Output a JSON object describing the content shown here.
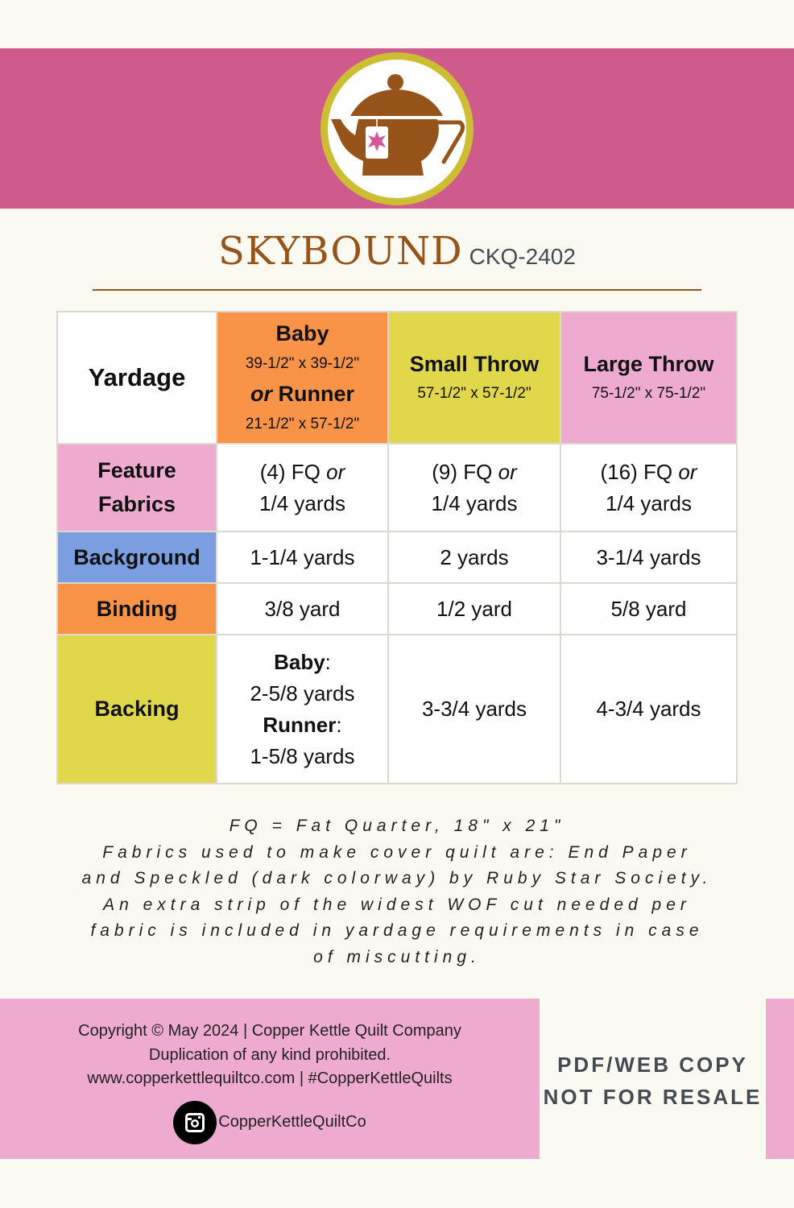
{
  "header": {
    "title": "SKYBOUND",
    "code": "CKQ-2402",
    "logo_icon": "teapot-with-quilt-star-teabag",
    "colors": {
      "banner": "#cf5a8c",
      "ring": "#cdbd33",
      "brown": "#97541a",
      "star": "#d8559a"
    }
  },
  "table": {
    "corner": "Yardage",
    "columns": [
      {
        "name": "Baby",
        "size": "39-1/2\" x 39-1/2\"",
        "alt_or": "or",
        "alt_name": "Runner",
        "alt_size": "21-1/2\" x 57-1/2\"",
        "color": "#f99347"
      },
      {
        "name": "Small Throw",
        "size": "57-1/2\" x 57-1/2\"",
        "color": "#e0d84a"
      },
      {
        "name": "Large Throw",
        "size": "75-1/2\" x 75-1/2\"",
        "color": "#efaad0"
      }
    ],
    "rows": [
      {
        "label1": "Feature",
        "label2": "Fabrics",
        "color": "#efaad0",
        "cells": [
          {
            "a": "(4) FQ ",
            "or": "or",
            "b": "1/4 yards"
          },
          {
            "a": "(9) FQ ",
            "or": "or",
            "b": "1/4 yards"
          },
          {
            "a": "(16) FQ ",
            "or": "or",
            "b": "1/4 yards"
          }
        ]
      },
      {
        "label": "Background",
        "color": "#7b9ee0",
        "cells": [
          "1-1/4 yards",
          "2 yards",
          "3-1/4 yards"
        ]
      },
      {
        "label": "Binding",
        "color": "#f99347",
        "cells": [
          "3/8 yard",
          "1/2 yard",
          "5/8 yard"
        ]
      },
      {
        "label": "Backing",
        "color": "#e0d84a",
        "baby": {
          "l1": "Baby",
          "v1": "2-5/8 yards",
          "l2": "Runner",
          "v2": "1-5/8 yards",
          "colon": ":"
        },
        "cells": [
          "3-3/4 yards",
          "4-3/4 yards"
        ]
      }
    ]
  },
  "notes": [
    "FQ = Fat Quarter, 18\" x 21\"",
    "Fabrics used to make cover quilt are: End Paper",
    "and Speckled (dark colorway) by Ruby Star Society.",
    "An extra strip of the widest WOF cut needed per",
    "fabric is included in yardage requirements in case",
    "of miscutting."
  ],
  "footer": {
    "copyright": "Copyright © May 2024  |  Copper Kettle Quilt Company",
    "duplication": "Duplication of any kind prohibited.",
    "web": "www.copperkettlequiltco.com | #CopperKettleQuilts",
    "instagram": "CopperKettleQuiltCo",
    "resale1": "PDF/WEB COPY",
    "resale2": "NOT FOR RESALE"
  }
}
